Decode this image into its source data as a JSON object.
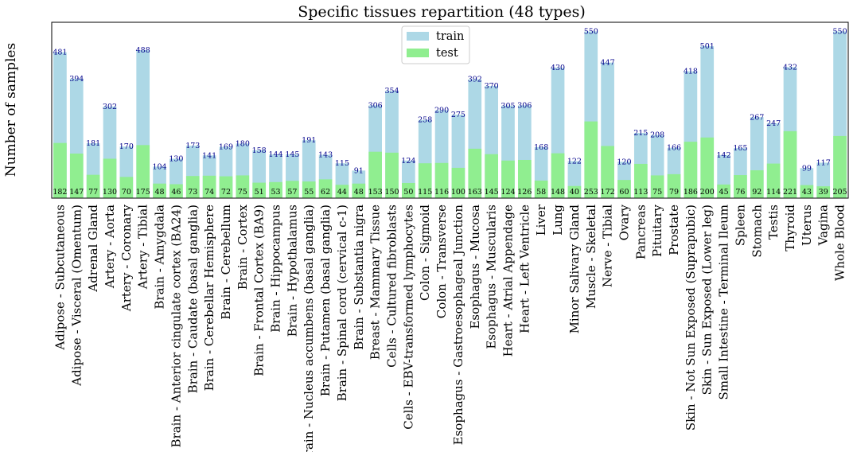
{
  "chart_data": {
    "type": "bar",
    "title": "Specific tissues repartition (48 types)",
    "xlabel": "",
    "ylabel": "Number of samples",
    "ylim": [
      0,
      580
    ],
    "grid": false,
    "legend_position": "top-center",
    "categories": [
      "Adipose - Subcutaneous",
      "Adipose - Visceral (Omentum)",
      "Adrenal Gland",
      "Artery - Aorta",
      "Artery - Coronary",
      "Artery - Tibial",
      "Brain - Amygdala",
      "Brain - Anterior cingulate cortex (BA24)",
      "Brain - Caudate (basal ganglia)",
      "Brain - Cerebellar Hemisphere",
      "Brain - Cerebellum",
      "Brain - Cortex",
      "Brain - Frontal Cortex (BA9)",
      "Brain - Hippocampus",
      "Brain - Hypothalamus",
      "Brain - Nucleus accumbens (basal ganglia)",
      "Brain - Putamen (basal ganglia)",
      "Brain - Spinal cord (cervical c-1)",
      "Brain - Substantia nigra",
      "Breast - Mammary Tissue",
      "Cells - Cultured fibroblasts",
      "Cells - EBV-transformed lymphocytes",
      "Colon - Sigmoid",
      "Colon - Transverse",
      "Esophagus - Gastroesophageal Junction",
      "Esophagus - Mucosa",
      "Esophagus - Muscularis",
      "Heart - Atrial Appendage",
      "Heart - Left Ventricle",
      "Liver",
      "Lung",
      "Minor Salivary Gland",
      "Muscle - Skeletal",
      "Nerve - Tibial",
      "Ovary",
      "Pancreas",
      "Pituitary",
      "Prostate",
      "Skin - Not Sun Exposed (Suprapubic)",
      "Skin - Sun Exposed (Lower leg)",
      "Small Intestine - Terminal Ileum",
      "Spleen",
      "Stomach",
      "Testis",
      "Thyroid",
      "Uterus",
      "Vagina",
      "Whole Blood"
    ],
    "series": [
      {
        "name": "train",
        "color": "#add8e6",
        "values": [
          481,
          394,
          181,
          302,
          170,
          488,
          104,
          130,
          173,
          141,
          169,
          180,
          158,
          144,
          145,
          191,
          143,
          115,
          91,
          306,
          354,
          124,
          258,
          290,
          275,
          392,
          370,
          305,
          306,
          168,
          430,
          122,
          550,
          447,
          120,
          215,
          208,
          166,
          418,
          501,
          142,
          165,
          267,
          247,
          432,
          99,
          117,
          550
        ]
      },
      {
        "name": "test",
        "color": "#90ee90",
        "values": [
          182,
          147,
          77,
          130,
          70,
          175,
          48,
          46,
          73,
          74,
          72,
          75,
          51,
          53,
          57,
          55,
          62,
          44,
          48,
          153,
          150,
          50,
          115,
          116,
          100,
          163,
          145,
          124,
          126,
          58,
          148,
          40,
          253,
          172,
          60,
          113,
          75,
          79,
          186,
          200,
          45,
          76,
          92,
          114,
          221,
          43,
          39,
          205
        ]
      }
    ]
  }
}
